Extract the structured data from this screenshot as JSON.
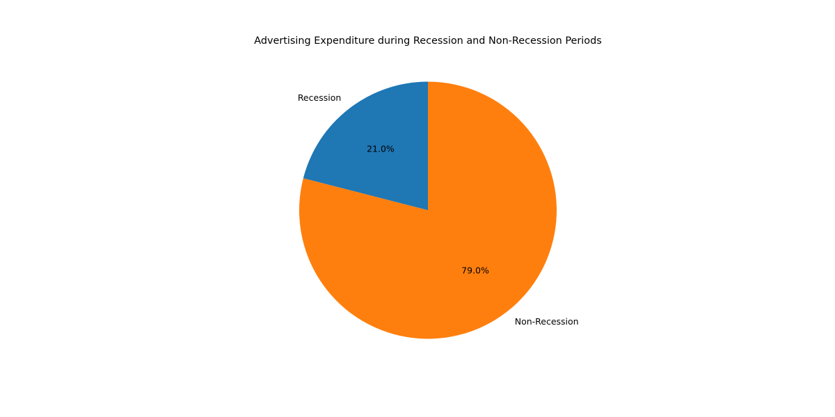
{
  "chart_data": {
    "type": "pie",
    "title": "Advertising Expenditure during Recession and Non-Recession Periods",
    "start_angle_deg": 90,
    "direction": "counterclockwise",
    "slices": [
      {
        "label": "Recession",
        "value": 21.0,
        "pct_label": "21.0%",
        "color": "#1f77b4"
      },
      {
        "label": "Non-Recession",
        "value": 79.0,
        "pct_label": "79.0%",
        "color": "#ff7f0e"
      }
    ]
  }
}
